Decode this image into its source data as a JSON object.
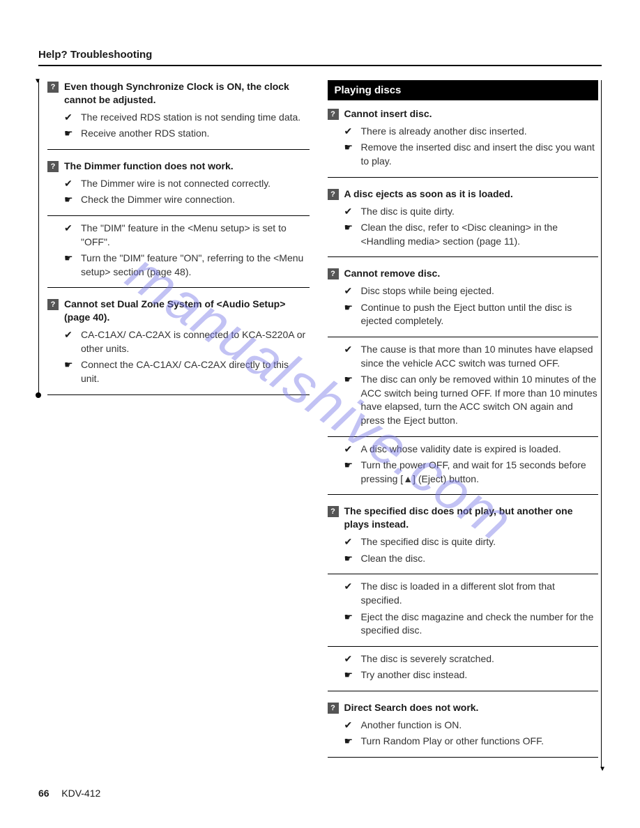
{
  "header": "Help? Troubleshooting",
  "watermark": "manualshive.com",
  "footer": {
    "page": "66",
    "model": "KDV-412"
  },
  "left": {
    "issues": [
      {
        "title": "Even though Synchronize Clock is ON, the clock cannot be adjusted.",
        "groups": [
          {
            "cause": "The received RDS station is not sending time data.",
            "fix": "Receive another RDS station."
          }
        ]
      },
      {
        "title": "The Dimmer function does not work.",
        "groups": [
          {
            "cause": "The Dimmer wire is not connected correctly.",
            "fix": "Check the Dimmer wire connection."
          },
          {
            "cause": "The \"DIM\" feature in the <Menu setup> is set to \"OFF\".",
            "fix": "Turn the \"DIM\" feature \"ON\", referring to the <Menu setup> section (page 48)."
          }
        ]
      },
      {
        "title": "Cannot set Dual Zone System of <Audio Setup> (page 40).",
        "groups": [
          {
            "cause": "CA-C1AX/ CA-C2AX is connected to KCA-S220A or other units.",
            "fix": "Connect the CA-C1AX/ CA-C2AX directly to this unit."
          }
        ]
      }
    ]
  },
  "right": {
    "section_title": "Playing discs",
    "issues": [
      {
        "title": "Cannot insert disc.",
        "groups": [
          {
            "cause": "There is already another disc inserted.",
            "fix": "Remove the inserted disc and insert the disc you want to play."
          }
        ]
      },
      {
        "title": "A disc ejects as soon as it is loaded.",
        "groups": [
          {
            "cause": "The disc is quite dirty.",
            "fix": "Clean the disc, refer to <Disc cleaning> in the <Handling media> section (page 11)."
          }
        ]
      },
      {
        "title": "Cannot remove disc.",
        "groups": [
          {
            "cause": "Disc stops while being ejected.",
            "fix": "Continue to push the Eject button until the disc is ejected completely."
          },
          {
            "cause": "The cause is that more than 10 minutes have elapsed since the vehicle ACC switch was turned OFF.",
            "fix": "The disc can only be removed within 10 minutes of the ACC switch being turned OFF. If more than 10 minutes have elapsed, turn the ACC switch ON again and press the Eject button."
          },
          {
            "cause": "A disc whose validity date is expired is loaded.",
            "fix": "Turn the power OFF, and wait for 15 seconds before pressing [▲] (Eject) button."
          }
        ]
      },
      {
        "title": "The specified disc does not play, but another one plays instead.",
        "groups": [
          {
            "cause": "The specified disc is quite dirty.",
            "fix": "Clean the disc."
          },
          {
            "cause": "The disc is loaded in a different slot from that specified.",
            "fix": "Eject the disc magazine and check the number for the specified disc."
          },
          {
            "cause": "The disc is severely scratched.",
            "fix": "Try another disc instead."
          }
        ]
      },
      {
        "title": "Direct Search does not work.",
        "groups": [
          {
            "cause": "Another function is ON.",
            "fix": "Turn Random Play or other functions OFF."
          }
        ]
      }
    ]
  }
}
